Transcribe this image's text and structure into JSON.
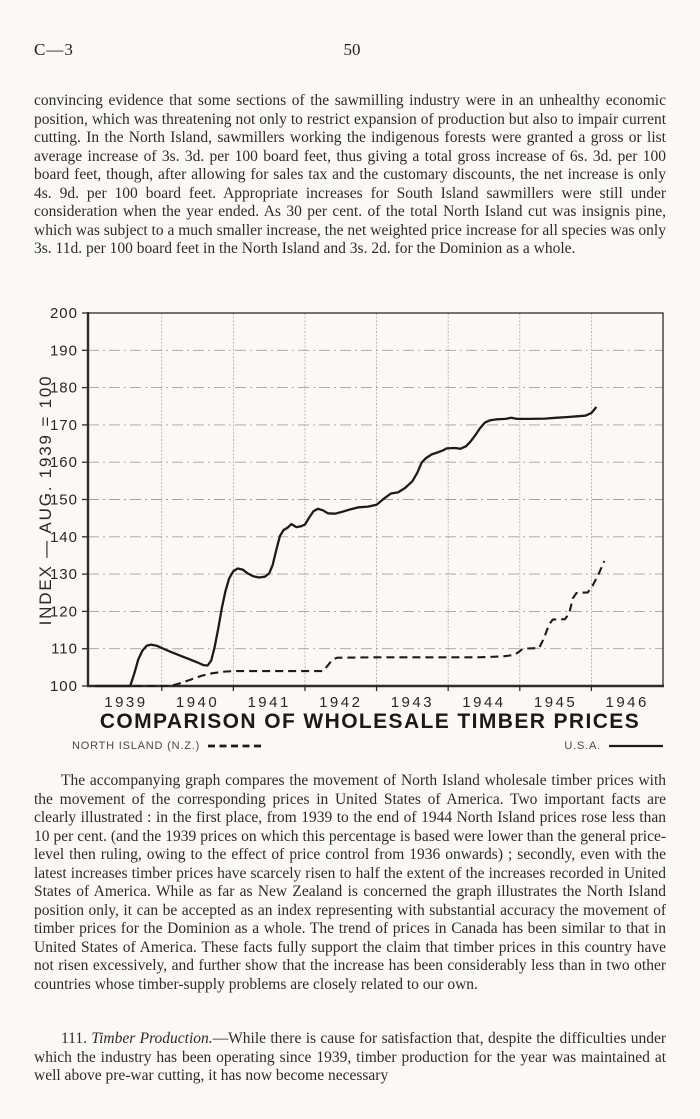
{
  "header": {
    "report_code": "C—3",
    "page_number": "50"
  },
  "paragraphs": {
    "p1": "convincing evidence that some sections of the sawmilling industry were in an unhealthy economic position, which was threatening not only to restrict expansion of production but also to impair current cutting. In the North Island, sawmillers working the indigenous forests were granted a gross or list average increase of 3s. 3d. per 100 board feet, thus giving a total gross increase of 6s. 3d. per 100 board feet, though, after allowing for sales tax and the customary discounts, the net increase is only 4s. 9d. per 100 board feet. Appropriate increases for South Island sawmillers were still under consideration when the year ended. As 30 per cent. of the total North Island cut was insignis pine, which was subject to a much smaller increase, the net weighted price increase for all species was only 3s. 11d. per 100 board feet in the North Island and 3s. 2d. for the Dominion as a whole.",
    "p2": "The accompanying graph compares the movement of North Island wholesale timber prices with the movement of the corresponding prices in United States of America. Two important facts are clearly illustrated : in the first place, from 1939 to the end of 1944 North Island prices rose less than 10 per cent. (and the 1939 prices on which this percentage is based were lower than the general price-level then ruling, owing to the effect of price control from 1936 onwards) ; secondly, even with the latest increases timber prices have scarcely risen to half the extent of the increases recorded in United States of America. While as far as New Zealand is concerned the graph illustrates the North Island position only, it can be accepted as an index representing with substantial accuracy the movement of timber prices for the Dominion as a whole. The trend of prices in Canada has been similar to that in United States of America. These facts fully support the claim that timber prices in this country have not risen excessively, and further show that the increase has been considerably less than in two other countries whose timber-supply problems are closely related to our own.",
    "p3_number": "111. ",
    "p3_title": "Timber Production.",
    "p3_rest": "—While there is cause for satisfaction that, despite the difficulties under which the industry has been operating since 1939, timber production for the year was maintained at well above pre-war cutting, it has now become necessary"
  },
  "chart_data": {
    "type": "line",
    "title": "COMPARISON OF WHOLESALE TIMBER PRICES",
    "xlabel": "",
    "ylabel": "INDEX — AUG. 1939 = 100",
    "ylim": [
      100,
      200
    ],
    "y_tick_step": 10,
    "xlim": [
      1938.97,
      1947.0
    ],
    "x_year_labels": [
      "1939",
      "1940",
      "1941",
      "1942",
      "1943",
      "1944",
      "1945",
      "1946"
    ],
    "grid": true,
    "legend_position": "below",
    "series": [
      {
        "name": "NORTH ISLAND (N.Z.)",
        "style": "dashed",
        "points": [
          [
            1939.07,
            100
          ],
          [
            1940.12,
            100
          ],
          [
            1940.25,
            100.7
          ],
          [
            1940.4,
            101.7
          ],
          [
            1940.55,
            102.7
          ],
          [
            1940.7,
            103.4
          ],
          [
            1940.85,
            103.8
          ],
          [
            1941.0,
            104
          ],
          [
            1941.6,
            104
          ],
          [
            1942.25,
            104
          ],
          [
            1942.31,
            105.3
          ],
          [
            1942.38,
            107
          ],
          [
            1942.45,
            107.6
          ],
          [
            1943.0,
            107.7
          ],
          [
            1943.7,
            107.7
          ],
          [
            1944.4,
            107.7
          ],
          [
            1944.75,
            107.9
          ],
          [
            1944.92,
            108.3
          ],
          [
            1944.99,
            109.2
          ],
          [
            1945.04,
            110
          ],
          [
            1945.27,
            110.2
          ],
          [
            1945.33,
            112.5
          ],
          [
            1945.41,
            116.5
          ],
          [
            1945.46,
            117.8
          ],
          [
            1945.63,
            117.9
          ],
          [
            1945.69,
            119.5
          ],
          [
            1945.74,
            123.5
          ],
          [
            1945.79,
            124.9
          ],
          [
            1945.95,
            125.1
          ],
          [
            1946.02,
            127
          ],
          [
            1946.1,
            130
          ],
          [
            1946.18,
            133.5
          ]
        ]
      },
      {
        "name": "U.S.A.",
        "style": "solid",
        "points": [
          [
            1939.07,
            100
          ],
          [
            1939.56,
            100
          ],
          [
            1939.62,
            103.5
          ],
          [
            1939.67,
            107
          ],
          [
            1939.73,
            109.5
          ],
          [
            1939.79,
            110.8
          ],
          [
            1939.85,
            111.1
          ],
          [
            1939.93,
            110.8
          ],
          [
            1940.0,
            110.2
          ],
          [
            1940.12,
            109.2
          ],
          [
            1940.25,
            108.2
          ],
          [
            1940.38,
            107.2
          ],
          [
            1940.5,
            106.3
          ],
          [
            1940.58,
            105.6
          ],
          [
            1940.64,
            105.5
          ],
          [
            1940.69,
            106.8
          ],
          [
            1940.74,
            110.5
          ],
          [
            1940.79,
            115.5
          ],
          [
            1940.84,
            121
          ],
          [
            1940.89,
            125.5
          ],
          [
            1940.94,
            128.8
          ],
          [
            1941.0,
            130.8
          ],
          [
            1941.06,
            131.5
          ],
          [
            1941.13,
            131.2
          ],
          [
            1941.2,
            130.2
          ],
          [
            1941.28,
            129.4
          ],
          [
            1941.36,
            129.1
          ],
          [
            1941.44,
            129.3
          ],
          [
            1941.5,
            130.2
          ],
          [
            1941.55,
            132.5
          ],
          [
            1941.6,
            136.5
          ],
          [
            1941.65,
            140.2
          ],
          [
            1941.7,
            141.8
          ],
          [
            1941.76,
            142.5
          ],
          [
            1941.81,
            143.4
          ],
          [
            1941.88,
            142.6
          ],
          [
            1941.94,
            142.8
          ],
          [
            1942.0,
            143.3
          ],
          [
            1942.06,
            145.2
          ],
          [
            1942.12,
            146.9
          ],
          [
            1942.18,
            147.5
          ],
          [
            1942.25,
            147.1
          ],
          [
            1942.32,
            146.3
          ],
          [
            1942.42,
            146.2
          ],
          [
            1942.52,
            146.7
          ],
          [
            1942.62,
            147.3
          ],
          [
            1942.75,
            147.9
          ],
          [
            1942.88,
            148.1
          ],
          [
            1943.0,
            148.6
          ],
          [
            1943.1,
            150.2
          ],
          [
            1943.2,
            151.6
          ],
          [
            1943.3,
            151.9
          ],
          [
            1943.4,
            153.1
          ],
          [
            1943.5,
            154.9
          ],
          [
            1943.57,
            157.2
          ],
          [
            1943.63,
            159.9
          ],
          [
            1943.69,
            161.1
          ],
          [
            1943.77,
            162.1
          ],
          [
            1943.85,
            162.6
          ],
          [
            1943.92,
            163.1
          ],
          [
            1943.98,
            163.7
          ],
          [
            1944.1,
            163.8
          ],
          [
            1944.17,
            163.6
          ],
          [
            1944.25,
            164.3
          ],
          [
            1944.31,
            165.5
          ],
          [
            1944.37,
            167
          ],
          [
            1944.44,
            169
          ],
          [
            1944.51,
            170.6
          ],
          [
            1944.58,
            171.2
          ],
          [
            1944.68,
            171.5
          ],
          [
            1944.8,
            171.6
          ],
          [
            1944.88,
            171.9
          ],
          [
            1944.96,
            171.6
          ],
          [
            1945.15,
            171.6
          ],
          [
            1945.35,
            171.7
          ],
          [
            1945.5,
            171.9
          ],
          [
            1945.65,
            172.1
          ],
          [
            1945.8,
            172.3
          ],
          [
            1945.92,
            172.5
          ],
          [
            1946.0,
            173.2
          ],
          [
            1946.07,
            174.8
          ]
        ]
      }
    ]
  }
}
